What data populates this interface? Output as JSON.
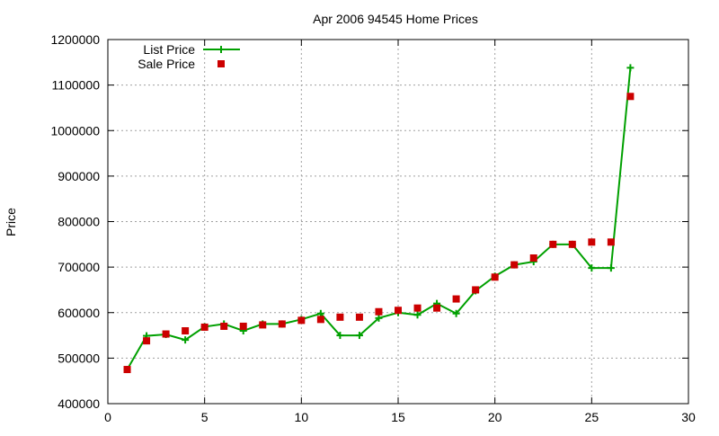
{
  "chart_data": {
    "type": "line",
    "title": "Apr 2006 94545 Home Prices",
    "xlabel": "",
    "ylabel": "Price",
    "xlim": [
      0,
      30
    ],
    "ylim": [
      400000,
      1200000
    ],
    "x_ticks": [
      0,
      5,
      10,
      15,
      20,
      25,
      30
    ],
    "y_ticks": [
      400000,
      500000,
      600000,
      700000,
      800000,
      900000,
      1000000,
      1100000,
      1200000
    ],
    "grid": true,
    "legend_position": "top-left",
    "series": [
      {
        "name": "List Price",
        "style": "line-with-plus-markers",
        "color": "#00a000",
        "x": [
          1,
          2,
          3,
          4,
          5,
          6,
          7,
          8,
          9,
          10,
          11,
          12,
          13,
          14,
          15,
          16,
          17,
          18,
          19,
          20,
          21,
          22,
          23,
          24,
          25,
          26,
          27
        ],
        "values": [
          475000,
          549000,
          552000,
          540000,
          569000,
          575000,
          560000,
          575000,
          575000,
          585000,
          598000,
          550000,
          550000,
          588000,
          600000,
          595000,
          620000,
          598000,
          648000,
          680000,
          705000,
          712000,
          750000,
          750000,
          698000,
          698000,
          1138000
        ]
      },
      {
        "name": "Sale Price",
        "style": "square-markers",
        "color": "#cc0000",
        "x": [
          1,
          2,
          3,
          4,
          5,
          6,
          7,
          8,
          9,
          10,
          11,
          12,
          13,
          14,
          15,
          16,
          17,
          18,
          19,
          20,
          21,
          22,
          23,
          24,
          25,
          26,
          27
        ],
        "values": [
          475000,
          538000,
          553000,
          560000,
          568000,
          570000,
          570000,
          573000,
          575000,
          583000,
          585000,
          590000,
          590000,
          602000,
          605000,
          610000,
          610000,
          630000,
          650000,
          678000,
          705000,
          720000,
          750000,
          750000,
          755000,
          755000,
          1075000
        ]
      }
    ]
  }
}
